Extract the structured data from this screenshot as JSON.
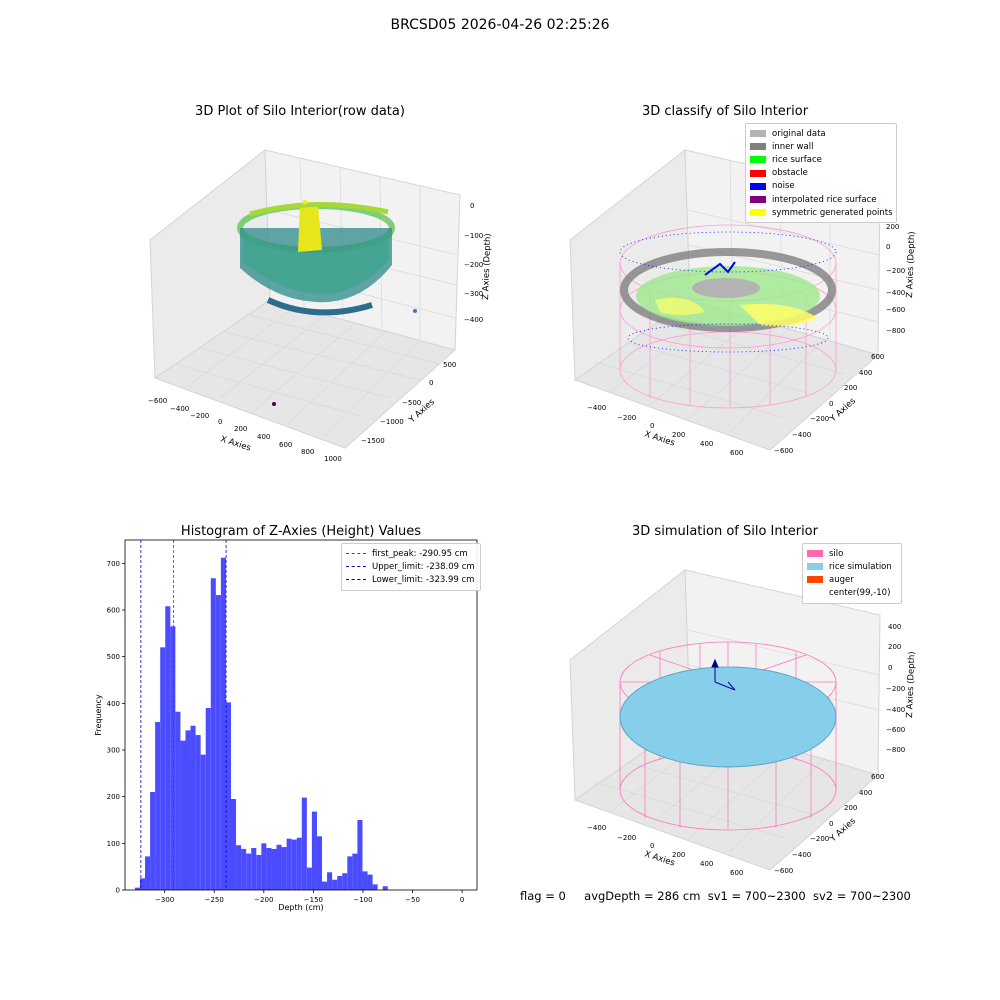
{
  "suptitle": "BRCSD05 2026-04-26 02:25:26",
  "panel1": {
    "title": "3D Plot of Silo Interior(row data)",
    "xlabel": "X Axies",
    "ylabel": "Y Axies",
    "zlabel": "Z Axies (Depth)",
    "xticks": [
      "−600",
      "−400",
      "−200",
      "0",
      "200",
      "400",
      "600",
      "800",
      "1000"
    ],
    "yticks": [
      "500",
      "0",
      "−500",
      "−1000",
      "−1500"
    ],
    "zticks": [
      "0",
      "−100",
      "−200",
      "−300",
      "−400"
    ],
    "colormap": "viridis"
  },
  "panel2": {
    "title": "3D classify of Silo Interior",
    "xlabel": "X Axies",
    "ylabel": "Y Axies",
    "zlabel": "Z Axies (Depth)",
    "xticks": [
      "−400",
      "−200",
      "0",
      "200",
      "400",
      "600"
    ],
    "yticks": [
      "600",
      "400",
      "200",
      "0",
      "−200",
      "−400",
      "−600"
    ],
    "zticks": [
      "200",
      "0",
      "−200",
      "−400",
      "−600",
      "−800"
    ],
    "legend": [
      {
        "label": "original data",
        "color": "#b3b3b3"
      },
      {
        "label": "inner wall",
        "color": "#808080"
      },
      {
        "label": "rice surface",
        "color": "#00ff00"
      },
      {
        "label": "obstacle",
        "color": "#ff0000"
      },
      {
        "label": "noise",
        "color": "#0000ff"
      },
      {
        "label": "interpolated rice surface",
        "color": "#800080"
      },
      {
        "label": "symmetric generated points",
        "color": "#ffff00"
      }
    ]
  },
  "panel4": {
    "title": "3D simulation of Silo Interior",
    "xlabel": "X Axies",
    "ylabel": "Y Axies",
    "zlabel": "Z Axies (Depth)",
    "xticks": [
      "−400",
      "−200",
      "0",
      "200",
      "400",
      "600"
    ],
    "yticks": [
      "600",
      "400",
      "200",
      "0",
      "−200",
      "−400",
      "−600"
    ],
    "zticks": [
      "400",
      "200",
      "0",
      "−200",
      "−400",
      "−600",
      "−800"
    ],
    "legend": [
      {
        "label": "silo",
        "color": "#ff69b4"
      },
      {
        "label": "rice simulation",
        "color": "#87ceeb"
      },
      {
        "label": "auger",
        "color": "#ff4500"
      },
      {
        "label": "center(99,-10)",
        "color": "none"
      }
    ]
  },
  "status": {
    "flag": "flag = 0",
    "avg_depth": "avgDepth = 286 cm",
    "sv1": "sv1 = 700~2300",
    "sv2": "sv2 = 700~2300"
  },
  "chart_data": [
    {
      "type": "bar",
      "title": "Histogram of Z-Axies (Height) Values",
      "xlabel": "Depth (cm)",
      "ylabel": "Frequency",
      "xlim": [
        -340,
        15
      ],
      "ylim": [
        0,
        750
      ],
      "bar_color": "#4b4bff",
      "bin_width": 5.1,
      "bin_starts": [
        -330,
        -324.9,
        -319.8,
        -314.7,
        -309.6,
        -304.5,
        -299.4,
        -294.3,
        -289.2,
        -284.1,
        -279,
        -273.9,
        -268.8,
        -263.7,
        -258.6,
        -253.5,
        -248.4,
        -243.3,
        -238.2,
        -233.1,
        -228,
        -222.9,
        -217.8,
        -212.7,
        -207.6,
        -202.5,
        -197.4,
        -192.3,
        -187.2,
        -182.1,
        -177,
        -171.9,
        -166.8,
        -161.7,
        -156.6,
        -151.5,
        -146.4,
        -141.3,
        -136.2,
        -131.1,
        -126,
        -120.9,
        -115.8,
        -110.7,
        -105.6,
        -100.5,
        -95.4,
        -90.3,
        -85.2,
        -80.1,
        -75,
        -69.9,
        -64.8,
        -59.7,
        -54.6,
        -49.5,
        -44.4,
        -39.3,
        -34.2,
        -29.1,
        -24,
        -18.9,
        -13.8,
        -8.7,
        -3.6
      ],
      "values": [
        5,
        25,
        72,
        210,
        360,
        520,
        608,
        565,
        382,
        320,
        342,
        352,
        332,
        290,
        390,
        668,
        632,
        712,
        402,
        195,
        96,
        88,
        78,
        90,
        75,
        100,
        90,
        88,
        97,
        92,
        110,
        108,
        112,
        198,
        48,
        168,
        115,
        18,
        38,
        22,
        30,
        36,
        72,
        78,
        150,
        40,
        33,
        12,
        0,
        8,
        0,
        0,
        0,
        0,
        0,
        0,
        0,
        0,
        0,
        0,
        0,
        0,
        0,
        0,
        0
      ],
      "xticks": [
        -300,
        -250,
        -200,
        -150,
        -100,
        -50,
        0
      ],
      "xtick_labels": [
        "−300",
        "−250",
        "−200",
        "−150",
        "−100",
        "−50",
        "0"
      ],
      "yticks": [
        0,
        100,
        200,
        300,
        400,
        500,
        600,
        700
      ],
      "vlines": [
        {
          "label": "first_peak: -290.95 cm",
          "x": -290.95,
          "color": "#ff0000"
        },
        {
          "label": "Upper_limit: -238.09 cm",
          "x": -238.09,
          "color": "#0000cc"
        },
        {
          "label": "Lower_limit: -323.99 cm",
          "x": -323.99,
          "color": "#0000cc"
        }
      ],
      "legend_position": "upper right"
    }
  ]
}
